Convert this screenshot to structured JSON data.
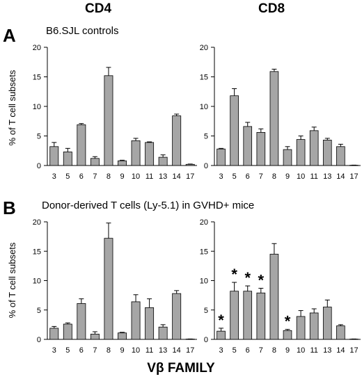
{
  "columns": [
    "CD4",
    "CD8"
  ],
  "rows": [
    {
      "letter": "A",
      "title": "B6.SJL controls"
    },
    {
      "letter": "B",
      "title": "Donor-derived  T cells (Ly-5.1) in GVHD+ mice"
    }
  ],
  "xlabel": "Vβ FAMILY",
  "chart_data": [
    {
      "type": "bar",
      "panel": "A",
      "column": "CD4",
      "categories": [
        "3",
        "5",
        "6",
        "7",
        "8",
        "9",
        "10",
        "11",
        "13",
        "14",
        "17"
      ],
      "values": [
        3.2,
        2.3,
        6.9,
        1.2,
        15.2,
        0.8,
        4.2,
        3.9,
        1.4,
        8.4,
        0.2
      ],
      "errors": [
        0.7,
        0.6,
        0.2,
        0.3,
        1.4,
        0.1,
        0.4,
        0.1,
        0.4,
        0.3,
        0.05
      ],
      "ylabel": "% of T cell subsets",
      "ylim": [
        0,
        20
      ],
      "yticks": [
        0,
        5,
        10,
        15,
        20
      ],
      "significant": []
    },
    {
      "type": "bar",
      "panel": "A",
      "column": "CD8",
      "categories": [
        "3",
        "5",
        "6",
        "7",
        "8",
        "9",
        "10",
        "11",
        "13",
        "14",
        "17"
      ],
      "values": [
        2.8,
        11.8,
        6.6,
        5.6,
        15.9,
        2.7,
        4.4,
        5.9,
        4.3,
        3.2,
        0.05
      ],
      "errors": [
        0.1,
        1.2,
        0.7,
        0.6,
        0.4,
        0.5,
        0.6,
        0.6,
        0.3,
        0.4,
        0.02
      ],
      "ylabel": "",
      "ylim": [
        0,
        20
      ],
      "yticks": [
        0,
        5,
        10,
        15,
        20
      ],
      "significant": []
    },
    {
      "type": "bar",
      "panel": "B",
      "column": "CD4",
      "categories": [
        "3",
        "5",
        "6",
        "7",
        "8",
        "9",
        "10",
        "11",
        "13",
        "14",
        "17"
      ],
      "values": [
        1.9,
        2.6,
        6.1,
        0.9,
        17.2,
        1.1,
        6.4,
        5.4,
        2.1,
        7.8,
        0.05
      ],
      "errors": [
        0.3,
        0.2,
        0.8,
        0.4,
        2.6,
        0.1,
        1.2,
        1.5,
        0.4,
        0.5,
        0.02
      ],
      "ylabel": "% of T cell subsets",
      "ylim": [
        0,
        20
      ],
      "yticks": [
        0,
        5,
        10,
        15,
        20
      ],
      "significant": []
    },
    {
      "type": "bar",
      "panel": "B",
      "column": "CD8",
      "categories": [
        "3",
        "5",
        "6",
        "7",
        "8",
        "9",
        "10",
        "11",
        "13",
        "14",
        "17"
      ],
      "values": [
        1.4,
        8.2,
        8.2,
        7.9,
        14.5,
        1.5,
        3.9,
        4.5,
        5.5,
        2.3,
        0.05
      ],
      "errors": [
        0.5,
        1.5,
        0.9,
        0.8,
        1.8,
        0.2,
        1.0,
        0.7,
        1.2,
        0.2,
        0.02
      ],
      "ylabel": "",
      "ylim": [
        0,
        20
      ],
      "yticks": [
        0,
        5,
        10,
        15,
        20
      ],
      "significant": [
        "3",
        "5",
        "6",
        "7",
        "9"
      ],
      "significance_marker": "*"
    }
  ],
  "colors": {
    "bar_fill": "#a6a6a6",
    "bar_stroke": "#000000",
    "axis": "#000000"
  }
}
